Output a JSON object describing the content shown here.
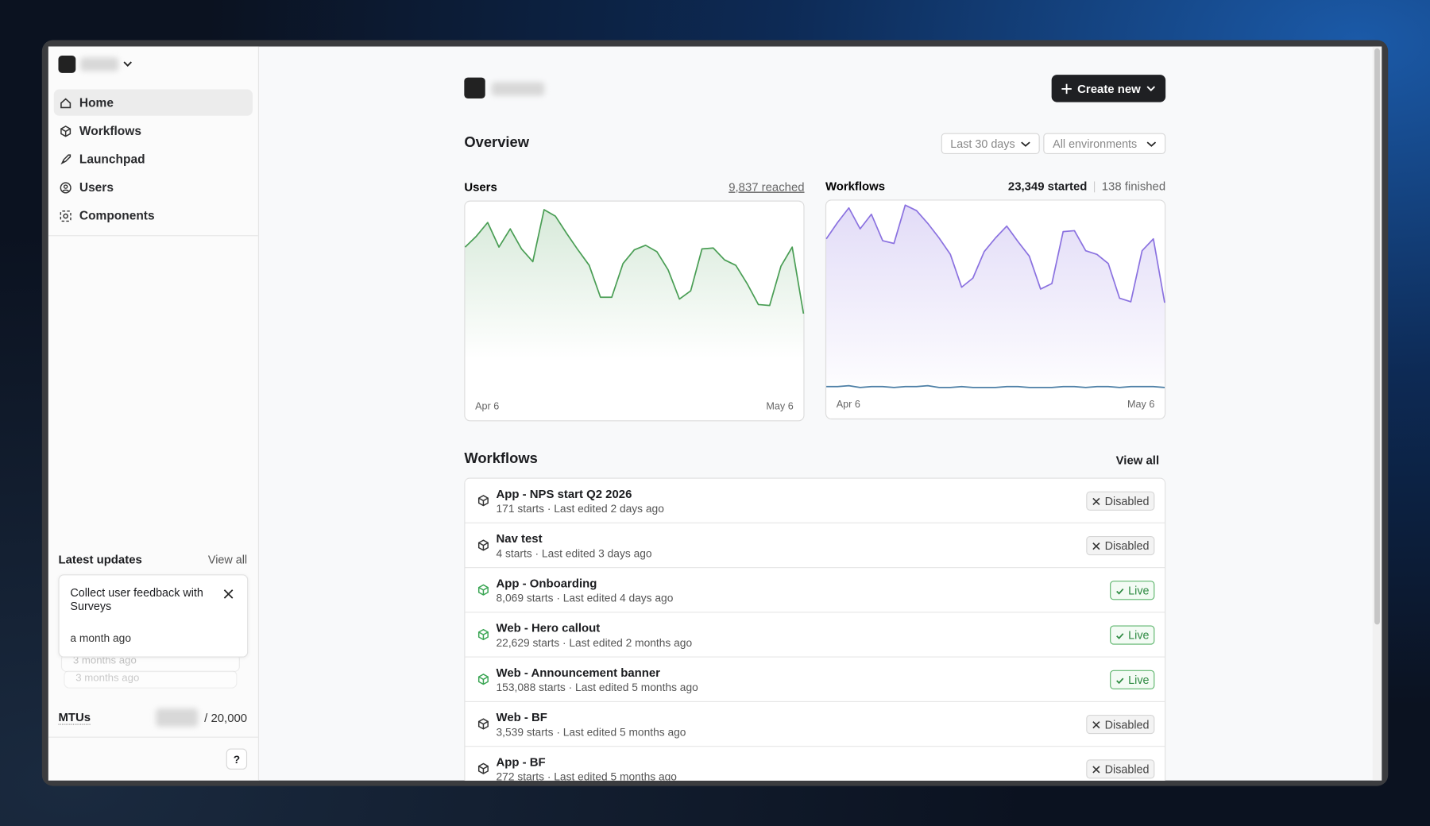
{
  "sidebar": {
    "nav": [
      "Home",
      "Workflows",
      "Launchpad",
      "Users",
      "Components"
    ],
    "latest_updates": {
      "title": "Latest updates",
      "view_all": "View all",
      "card": {
        "text": "Collect user feedback with Surveys",
        "time": "a month ago"
      },
      "stacked": [
        "3 months ago",
        "3 months ago"
      ]
    },
    "mtus": {
      "label": "MTUs",
      "limit": "/ 20,000"
    },
    "help": "?"
  },
  "header": {
    "create_new": "Create new"
  },
  "overview": {
    "title": "Overview",
    "filters": [
      "Last 30 days",
      "All environments"
    ]
  },
  "chart_data": [
    {
      "type": "line",
      "title": "Users",
      "summary": [
        "9,837 reached"
      ],
      "categories": [
        "Apr 6",
        null,
        null,
        null,
        null,
        null,
        null,
        null,
        null,
        null,
        null,
        null,
        null,
        null,
        null,
        null,
        null,
        null,
        null,
        null,
        null,
        null,
        null,
        null,
        null,
        null,
        null,
        null,
        null,
        null,
        "May 6"
      ],
      "series": [
        {
          "color": "#4a9e55",
          "values": [
            191,
            203,
            218,
            191,
            211,
            189,
            175,
            232,
            225,
            206,
            188,
            171,
            136,
            136,
            173,
            188,
            193,
            186,
            166,
            134,
            143,
            189,
            190,
            177,
            171,
            151,
            128,
            127,
            170,
            191,
            118
          ]
        }
      ]
    },
    {
      "type": "line",
      "title": "Workflows",
      "summary": [
        "23,349 started",
        "138 finished"
      ],
      "categories": [
        "Apr 6",
        null,
        null,
        null,
        null,
        null,
        null,
        null,
        null,
        null,
        null,
        null,
        null,
        null,
        null,
        null,
        null,
        null,
        null,
        null,
        null,
        null,
        null,
        null,
        null,
        null,
        null,
        null,
        null,
        null,
        "May 6"
      ],
      "series": [
        {
          "color": "#8b72e0",
          "values": [
            198,
            216,
            232,
            209,
            225,
            196,
            193,
            235,
            229,
            215,
            199,
            181,
            145,
            155,
            184,
            199,
            212,
            195,
            179,
            143,
            149,
            206,
            207,
            185,
            181,
            171,
            133,
            129,
            185,
            198,
            128
          ]
        },
        {
          "color": "#4d7fa6",
          "values": [
            36,
            36,
            37,
            35,
            36,
            36,
            35,
            36,
            36,
            37,
            35,
            35,
            36,
            35,
            35,
            35,
            36,
            36,
            35,
            35,
            35,
            36,
            36,
            35,
            36,
            36,
            35,
            36,
            36,
            36,
            35
          ]
        }
      ]
    }
  ],
  "workflows": {
    "title": "Workflows",
    "view_all": "View all",
    "rows": [
      {
        "name": "App - NPS start Q2 2026",
        "meta": "171 starts · Last edited 2 days ago",
        "status": "Disabled",
        "live": false
      },
      {
        "name": "Nav test",
        "meta": "4 starts · Last edited 3 days ago",
        "status": "Disabled",
        "live": false
      },
      {
        "name": "App - Onboarding",
        "meta": "8,069 starts · Last edited 4 days ago",
        "status": "Live",
        "live": true
      },
      {
        "name": "Web - Hero callout",
        "meta": "22,629 starts · Last edited 2 months ago",
        "status": "Live",
        "live": true
      },
      {
        "name": "Web - Announcement banner",
        "meta": "153,088 starts · Last edited 5 months ago",
        "status": "Live",
        "live": true
      },
      {
        "name": "Web - BF",
        "meta": "3,539 starts · Last edited 5 months ago",
        "status": "Disabled",
        "live": false
      },
      {
        "name": "App - BF",
        "meta": "272 starts · Last edited 5 months ago",
        "status": "Disabled",
        "live": false
      }
    ]
  }
}
